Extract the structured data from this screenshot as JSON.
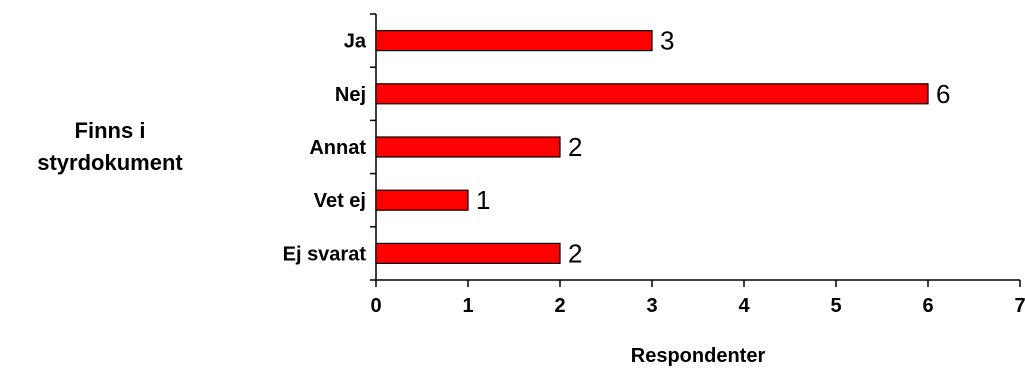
{
  "chart_data": {
    "type": "bar",
    "orientation": "horizontal",
    "categories": [
      "Ja",
      "Nej",
      "Annat",
      "Vet ej",
      "Ej svarat"
    ],
    "values": [
      3,
      6,
      2,
      1,
      2
    ],
    "ylabel_lines": [
      "Finns i",
      "styrdokument"
    ],
    "xlabel": "Respondenter",
    "xlim": [
      0,
      7
    ],
    "xticks": [
      0,
      1,
      2,
      3,
      4,
      5,
      6,
      7
    ],
    "bar_color": "#FF0000",
    "grid": false,
    "legend": "none"
  }
}
